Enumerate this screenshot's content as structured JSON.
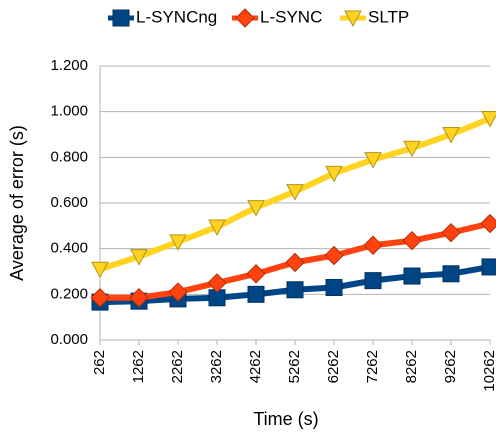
{
  "chart_data": {
    "type": "line",
    "x_label": "Time (s)",
    "y_label": "Average of error (s)",
    "categories": [
      "262",
      "1262",
      "2262",
      "3262",
      "4262",
      "5262",
      "6262",
      "7262",
      "8262",
      "9262",
      "10262"
    ],
    "series": [
      {
        "name": "L-SYNCng",
        "color": "#004586",
        "marker": "square",
        "values": [
          0.166,
          0.17,
          0.18,
          0.185,
          0.2,
          0.22,
          0.23,
          0.26,
          0.28,
          0.29,
          0.32
        ]
      },
      {
        "name": "L-SYNC",
        "color": "#ff420e",
        "marker": "diamond",
        "values": [
          0.185,
          0.185,
          0.21,
          0.25,
          0.29,
          0.34,
          0.37,
          0.415,
          0.435,
          0.47,
          0.51
        ]
      },
      {
        "name": "SLTP",
        "color": "#ffd320",
        "marker": "triangle-down",
        "values": [
          0.31,
          0.365,
          0.43,
          0.495,
          0.58,
          0.65,
          0.73,
          0.79,
          0.84,
          0.9,
          0.97
        ]
      }
    ],
    "ylim": [
      0,
      1.2
    ],
    "yticks": [
      {
        "value": 0,
        "label": "0.000"
      },
      {
        "value": 0.2,
        "label": "0.200"
      },
      {
        "value": 0.4,
        "label": "0.400"
      },
      {
        "value": 0.6,
        "label": "0.600"
      },
      {
        "value": 0.8,
        "label": "0.800"
      },
      {
        "value": 1.0,
        "label": "1.000"
      },
      {
        "value": 1.2,
        "label": "1.200"
      }
    ],
    "grid": true,
    "legend": "top"
  }
}
